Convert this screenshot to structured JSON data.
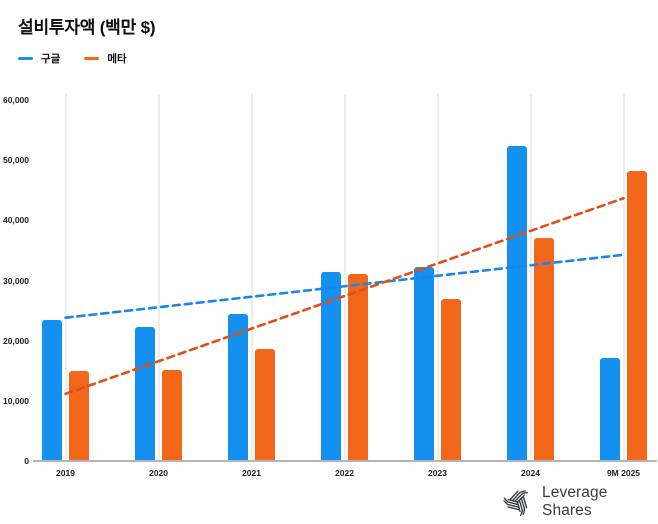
{
  "chart": {
    "title": "설비투자액 (백만 $)"
  },
  "chart_data": {
    "type": "bar",
    "title": "설비투자액 (백만 $)",
    "categories": [
      "2019",
      "2020",
      "2021",
      "2022",
      "2023",
      "2024",
      "9M 2025"
    ],
    "series": [
      {
        "key": "google",
        "name": "구글",
        "color": "#1490f0",
        "trend_color": "#1a86eb",
        "values": [
          23500,
          22300,
          24400,
          31400,
          32200,
          52400,
          17100
        ],
        "trendline": true
      },
      {
        "key": "meta",
        "name": "메타",
        "color": "#f2671a",
        "trend_color": "#e04f17",
        "values": [
          15000,
          15100,
          18600,
          31100,
          26900,
          37000,
          48200
        ],
        "trendline": true
      }
    ],
    "ylim": [
      0,
      60000
    ],
    "yticks": [
      {
        "value": 0,
        "label": "0"
      },
      {
        "value": 10000,
        "label": "10,000"
      },
      {
        "value": 20000,
        "label": "20,000"
      },
      {
        "value": 30000,
        "label": "30,000"
      },
      {
        "value": 40000,
        "label": "40,000"
      },
      {
        "value": 50000,
        "label": "50,000"
      },
      {
        "value": 60000,
        "label": "60,000"
      }
    ],
    "grid": "vertical-only",
    "legend_position": "top-left",
    "trendline_style": "dashed"
  },
  "footer": {
    "brand": "Leverage Shares"
  }
}
